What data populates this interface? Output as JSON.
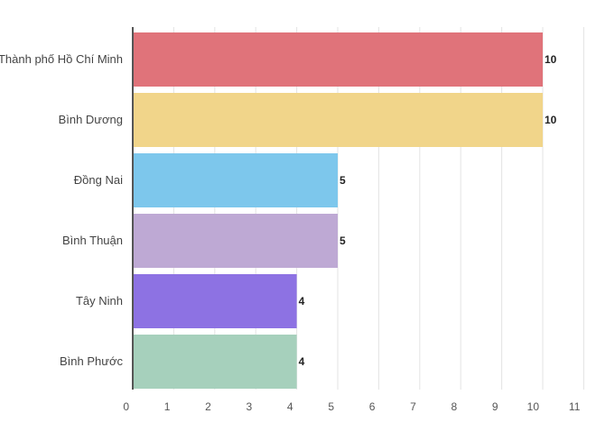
{
  "chart_data": {
    "type": "bar",
    "orientation": "horizontal",
    "title": "",
    "xlabel": "",
    "ylabel": "",
    "categories": [
      "Thành phố Hồ Chí Minh",
      "Bình Dương",
      "Đồng Nai",
      "Bình Thuận",
      "Tây Ninh",
      "Bình Phước"
    ],
    "values": [
      10,
      10,
      5,
      5,
      4,
      4
    ],
    "colors": [
      "#e0737a",
      "#f1d58a",
      "#7dc7ec",
      "#bea9d4",
      "#8d72e3",
      "#a6d0bc"
    ],
    "xlim": [
      0,
      11
    ],
    "ticks": [
      "0",
      "1",
      "2",
      "3",
      "4",
      "5",
      "6",
      "7",
      "8",
      "9",
      "10",
      "11"
    ],
    "grid": true,
    "data_labels": true
  }
}
